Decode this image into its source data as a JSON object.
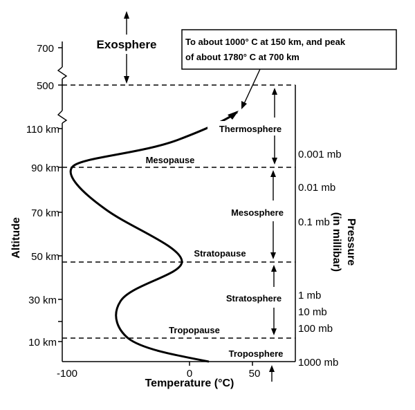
{
  "diagram": {
    "altitude_labels": [
      "700",
      "500",
      "110 km",
      "90 km",
      "70 km",
      "50 km",
      "30 km",
      "10 km"
    ],
    "temperature_ticks": [
      "-100",
      "0",
      "50"
    ],
    "pressure_labels": [
      "0.001 mb",
      "0.01 mb",
      "0.1 mb",
      "1 mb",
      "10 mb",
      "100 mb",
      "1000 mb"
    ],
    "layers": {
      "exosphere": "Exosphere",
      "thermosphere": "Thermosphere",
      "mesopause": "Mesopause",
      "mesosphere": "Mesosphere",
      "stratopause": "Stratopause",
      "stratosphere": "Stratosphere",
      "tropopause": "Tropopause",
      "troposphere": "Troposphere"
    },
    "callout": {
      "line1": "To about 1000° C at 150 km, and peak",
      "line2": "of about 1780° C at 700 km"
    },
    "axis_titles": {
      "y": "Altitude",
      "x": "Temperature (°C)",
      "right_line1": "Pressure",
      "right_line2": "(in millibar)"
    }
  }
}
